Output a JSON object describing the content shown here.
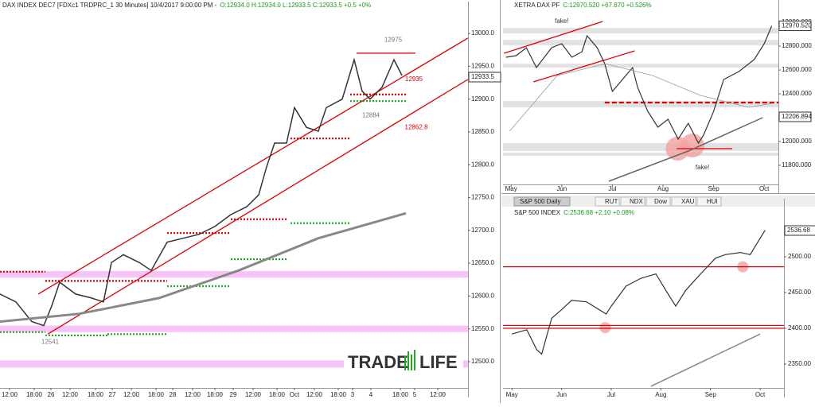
{
  "chart_data": [
    {
      "type": "line",
      "title": "DAX INDEX DEC7 [FDXc1 TRDPRC_1 30 Minutes] 10/4/2017 9:00:00 PM -",
      "subtitle": "O:12934.0 H:12934.0 L:12933.5 C:12933.5 +0.5 +0%",
      "xlim": [
        0,
        588
      ],
      "xticks": [
        {
          "value": 12,
          "label": "12:00"
        },
        {
          "value": 43,
          "label": "18:00"
        },
        {
          "value": 64,
          "label": "26"
        },
        {
          "value": 88,
          "label": "12:00"
        },
        {
          "value": 120,
          "label": "18:00"
        },
        {
          "value": 141,
          "label": "27"
        },
        {
          "value": 165,
          "label": "12:00"
        },
        {
          "value": 196,
          "label": "18:00"
        },
        {
          "value": 217,
          "label": "28"
        },
        {
          "value": 242,
          "label": "12:00"
        },
        {
          "value": 270,
          "label": "18:00"
        },
        {
          "value": 293,
          "label": "29"
        },
        {
          "value": 318,
          "label": "12:00"
        },
        {
          "value": 348,
          "label": "18:00"
        },
        {
          "value": 370,
          "label": "Oct"
        },
        {
          "value": 395,
          "label": "12:00"
        },
        {
          "value": 425,
          "label": "18:00"
        },
        {
          "value": 443,
          "label": "3"
        },
        {
          "value": 466,
          "label": "4"
        },
        {
          "value": 503,
          "label": "18:00"
        },
        {
          "value": 521,
          "label": "5"
        },
        {
          "value": 550,
          "label": "12:00"
        }
      ],
      "ylim": [
        12460,
        13034
      ],
      "yticks": [
        {
          "value": 12500,
          "label": "12500.0"
        },
        {
          "value": 12550,
          "label": "12550.0"
        },
        {
          "value": 12600,
          "label": "12600.0"
        },
        {
          "value": 12650,
          "label": "12650.0"
        },
        {
          "value": 12700,
          "label": "12700.0"
        },
        {
          "value": 12750,
          "label": "12750.0"
        },
        {
          "value": 12800,
          "label": "12800.0"
        },
        {
          "value": 12850,
          "label": "12850.0"
        },
        {
          "value": 12900,
          "label": "12900.0"
        },
        {
          "value": 12950,
          "label": "12950.0"
        },
        {
          "value": 13000,
          "label": "13000.0"
        }
      ],
      "series": [
        {
          "color": "#333333",
          "width": 1.5,
          "x": [
            0,
            20,
            40,
            55,
            65,
            75,
            95,
            115,
            130,
            140,
            155,
            175,
            190,
            210,
            230,
            250,
            270,
            290,
            310,
            325,
            335,
            345,
            360,
            370,
            385,
            400,
            410,
            430,
            445,
            455,
            465,
            480,
            495,
            505
          ],
          "values": [
            12603,
            12591,
            12561,
            12555,
            12585,
            12621,
            12603,
            12597,
            12591,
            12651,
            12663,
            12651,
            12639,
            12682,
            12688,
            12694,
            12706,
            12724,
            12736,
            12754,
            12797,
            12833,
            12833,
            12887,
            12857,
            12851,
            12887,
            12900,
            12960,
            12912,
            12900,
            12918,
            12960,
            12936
          ]
        },
        {
          "color": "#888888",
          "width": 3,
          "x": [
            0,
            100,
            200,
            300,
            400,
            510
          ],
          "values": [
            12561,
            12573,
            12597,
            12639,
            12688,
            12726
          ]
        }
      ],
      "bands": [
        {
          "y": [
            12628,
            12638
          ],
          "color": "#f7c4f7"
        },
        {
          "y": [
            12545,
            12555
          ],
          "color": "#f7c4f7"
        },
        {
          "y": [
            12491,
            12502
          ],
          "color": "#f7c4f7"
        }
      ],
      "levels": [
        {
          "x": [
            0,
            57
          ],
          "y": 12637,
          "color": "#e00000",
          "style": "dotted"
        },
        {
          "x": [
            57,
            210
          ],
          "y": 12623,
          "color": "#e00000",
          "style": "dotted"
        },
        {
          "x": [
            210,
            290
          ],
          "y": 12696,
          "color": "#e00000",
          "style": "dotted"
        },
        {
          "x": [
            290,
            360
          ],
          "y": 12717,
          "color": "#e00000",
          "style": "dotted"
        },
        {
          "x": [
            365,
            440
          ],
          "y": 12840,
          "color": "#e00000",
          "style": "dotted"
        },
        {
          "x": [
            440,
            510
          ],
          "y": 12907,
          "color": "#e00000",
          "style": "dotted"
        },
        {
          "x": [
            0,
            57
          ],
          "y": 12545,
          "color": "#22aa22",
          "style": "dotted"
        },
        {
          "x": [
            57,
            135
          ],
          "y": 12540,
          "color": "#22aa22",
          "style": "dotted"
        },
        {
          "x": [
            135,
            210
          ],
          "y": 12542,
          "color": "#22aa22",
          "style": "dotted"
        },
        {
          "x": [
            210,
            290
          ],
          "y": 12615,
          "color": "#22aa22",
          "style": "dotted"
        },
        {
          "x": [
            290,
            360
          ],
          "y": 12656,
          "color": "#22aa22",
          "style": "dotted"
        },
        {
          "x": [
            365,
            440
          ],
          "y": 12711,
          "color": "#22aa22",
          "style": "dotted"
        },
        {
          "x": [
            440,
            510
          ],
          "y": 12897,
          "color": "#22aa22",
          "style": "dotted"
        },
        {
          "x": [
            448,
            522
          ],
          "y": 12970,
          "color": "#e00000",
          "style": "solid"
        }
      ],
      "trendlines": [
        {
          "x": [
            48,
            588
          ],
          "y": [
            12603,
            12993
          ],
          "color": "#e00000"
        },
        {
          "x": [
            60,
            588
          ],
          "y": [
            12542,
            12930
          ],
          "color": "#e00000"
        }
      ],
      "annotations": [
        {
          "text": "12975",
          "x": 494,
          "y": 12990,
          "color": "#777777"
        },
        {
          "text": "12935",
          "x": 520,
          "y": 12930,
          "color": "#e00000"
        },
        {
          "text": "12862.8",
          "x": 523,
          "y": 12857,
          "color": "#e00000"
        },
        {
          "text": "12884",
          "x": 466,
          "y": 12875,
          "color": "#777777"
        },
        {
          "text": "12541",
          "x": 63,
          "y": 12530,
          "color": "#777777"
        }
      ],
      "price_tags": [
        {
          "value": 12933.5,
          "label": "12933.5"
        }
      ]
    },
    {
      "type": "line",
      "title": "XETRA DAX PF",
      "subtitle": "C:12970.520 +67.870 +0.526%",
      "xlim": [
        -0.16,
        5.28
      ],
      "xticks": [
        {
          "value": 0,
          "label": "May"
        },
        {
          "value": 1,
          "label": "Jun"
        },
        {
          "value": 2,
          "label": "Jul"
        },
        {
          "value": 3,
          "label": "Aug"
        },
        {
          "value": 4,
          "label": "Sep"
        },
        {
          "value": 5,
          "label": "Oct"
        }
      ],
      "ylim": [
        11640,
        13107
      ],
      "yticks": [
        {
          "value": 11800,
          "label": "11800.000"
        },
        {
          "value": 12000,
          "label": "12000.000"
        },
        {
          "value": 12400,
          "label": "12400.000"
        },
        {
          "value": 12600,
          "label": "12600.000"
        },
        {
          "value": 12800,
          "label": "12800.000"
        },
        {
          "value": 13000,
          "label": "13000.000"
        }
      ],
      "series": [
        {
          "color": "#333333",
          "width": 1.2,
          "x": [
            -0.1,
            0.1,
            0.3,
            0.5,
            0.8,
            1.0,
            1.2,
            1.4,
            1.5,
            1.7,
            1.85,
            2.0,
            2.2,
            2.4,
            2.5,
            2.7,
            2.9,
            3.1,
            3.3,
            3.5,
            3.7,
            3.8,
            4.0,
            4.2,
            4.5,
            4.8,
            5.0,
            5.15
          ],
          "values": [
            12707,
            12720,
            12787,
            12620,
            12787,
            12820,
            12707,
            12753,
            12887,
            12787,
            12653,
            12420,
            12520,
            12620,
            12453,
            12253,
            12120,
            12187,
            12020,
            12153,
            11987,
            12053,
            12253,
            12520,
            12587,
            12687,
            12820,
            12970
          ]
        },
        {
          "color": "#666666",
          "width": 1.5,
          "x": [
            1.93,
            3.5,
            4.97
          ],
          "values": [
            11667,
            11920,
            12200
          ]
        },
        {
          "color": "#999999",
          "width": 0.8,
          "x": [
            -0.03,
            0.91,
            1.86,
            2.8,
            3.74,
            4.69,
            5.16
          ],
          "values": [
            12087,
            12553,
            12653,
            12553,
            12387,
            12287,
            12320
          ]
        }
      ],
      "bands": [
        {
          "y": [
            12907,
            12953
          ],
          "color": "#e2e2e2"
        },
        {
          "y": [
            12807,
            12853
          ],
          "color": "#e2e2e2"
        },
        {
          "y": [
            12620,
            12653
          ],
          "color": "#e2e2e2"
        },
        {
          "y": [
            12287,
            12340
          ],
          "color": "#e2e2e2"
        },
        {
          "y": [
            11920,
            11987
          ],
          "color": "#e2e2e2"
        },
        {
          "y": [
            11880,
            11907
          ],
          "color": "#e2e2e2"
        }
      ],
      "levels": [
        {
          "x": [
            1.85,
            5.28
          ],
          "y": 12327,
          "color": "#e00000",
          "style": "dashed"
        },
        {
          "x": [
            3.27,
            4.37
          ],
          "y": 11940,
          "color": "#e00000",
          "style": "solid"
        }
      ],
      "trendlines": [
        {
          "x": [
            -0.14,
            1.81
          ],
          "y": [
            12740,
            13007
          ],
          "color": "#e00000"
        },
        {
          "x": [
            0.44,
            2.44
          ],
          "y": [
            12500,
            12760
          ],
          "color": "#e00000"
        }
      ],
      "markers": [
        {
          "x": 3.29,
          "y": 11940,
          "color": "#f4a0a0"
        },
        {
          "x": 3.58,
          "y": 11967,
          "color": "#f4a0a0"
        }
      ],
      "annotations": [
        {
          "text": "fake!",
          "x": 1.0,
          "y": 13007,
          "color": "#333333"
        },
        {
          "text": "fake!",
          "x": 3.78,
          "y": 11780,
          "color": "#333333"
        }
      ],
      "price_tags": [
        {
          "value": 12970.52,
          "label": "12970.520"
        },
        {
          "value": 12206.894,
          "label": "12206.894"
        }
      ]
    },
    {
      "type": "line",
      "title": "S&P 500 INDEX",
      "subtitle": "C:2536.68 +2.10 +0.08%",
      "xlim": [
        -0.18,
        5.48
      ],
      "xticks": [
        {
          "value": 0,
          "label": "May"
        },
        {
          "value": 1,
          "label": "Jun"
        },
        {
          "value": 2,
          "label": "Jul"
        },
        {
          "value": 3,
          "label": "Aug"
        },
        {
          "value": 4,
          "label": "Sep"
        },
        {
          "value": 5,
          "label": "Oct"
        }
      ],
      "ylim": [
        2316.7,
        2567.8
      ],
      "yticks": [
        {
          "value": 2350,
          "label": "2350.00"
        },
        {
          "value": 2400,
          "label": "2400.00"
        },
        {
          "value": 2450,
          "label": "2450.00"
        },
        {
          "value": 2500,
          "label": "2500.00"
        }
      ],
      "series": [
        {
          "color": "#333333",
          "width": 1.2,
          "x": [
            0,
            0.3,
            0.5,
            0.6,
            0.8,
            1.0,
            1.2,
            1.5,
            1.9,
            2.0,
            2.3,
            2.6,
            2.9,
            3.1,
            3.3,
            3.5,
            3.8,
            4.1,
            4.3,
            4.6,
            4.8,
            5.0,
            5.1
          ],
          "values": [
            2392,
            2398,
            2370,
            2364,
            2414,
            2426,
            2439,
            2437,
            2420,
            2431,
            2459,
            2470,
            2476,
            2453,
            2431,
            2453,
            2476,
            2498,
            2503,
            2506,
            2503,
            2526,
            2537
          ]
        },
        {
          "color": "#888888",
          "width": 1.5,
          "x": [
            2.8,
            5.0
          ],
          "values": [
            2319,
            2392
          ]
        }
      ],
      "levels": [
        {
          "x": [
            -0.18,
            5.48
          ],
          "y": 2486,
          "color": "#e00000",
          "style": "solid"
        },
        {
          "x": [
            -0.18,
            5.48
          ],
          "y": 2404,
          "color": "#e00000",
          "style": "solid"
        },
        {
          "x": [
            -0.18,
            5.48
          ],
          "y": 2400,
          "color": "#e00000",
          "style": "solid"
        }
      ],
      "markers": [
        {
          "x": 1.88,
          "y": 2401,
          "color": "#f4a0a0"
        },
        {
          "x": 4.65,
          "y": 2486,
          "color": "#f4a0a0"
        }
      ],
      "price_tags": [
        {
          "value": 2536.68,
          "label": "2536.68"
        }
      ]
    }
  ],
  "tabs": [
    "S&P 500 Daily",
    "RUT",
    "NDX",
    "Dow",
    "XAU",
    "HUI"
  ],
  "logo": {
    "left": "TRADE",
    "right": "LIFE"
  }
}
